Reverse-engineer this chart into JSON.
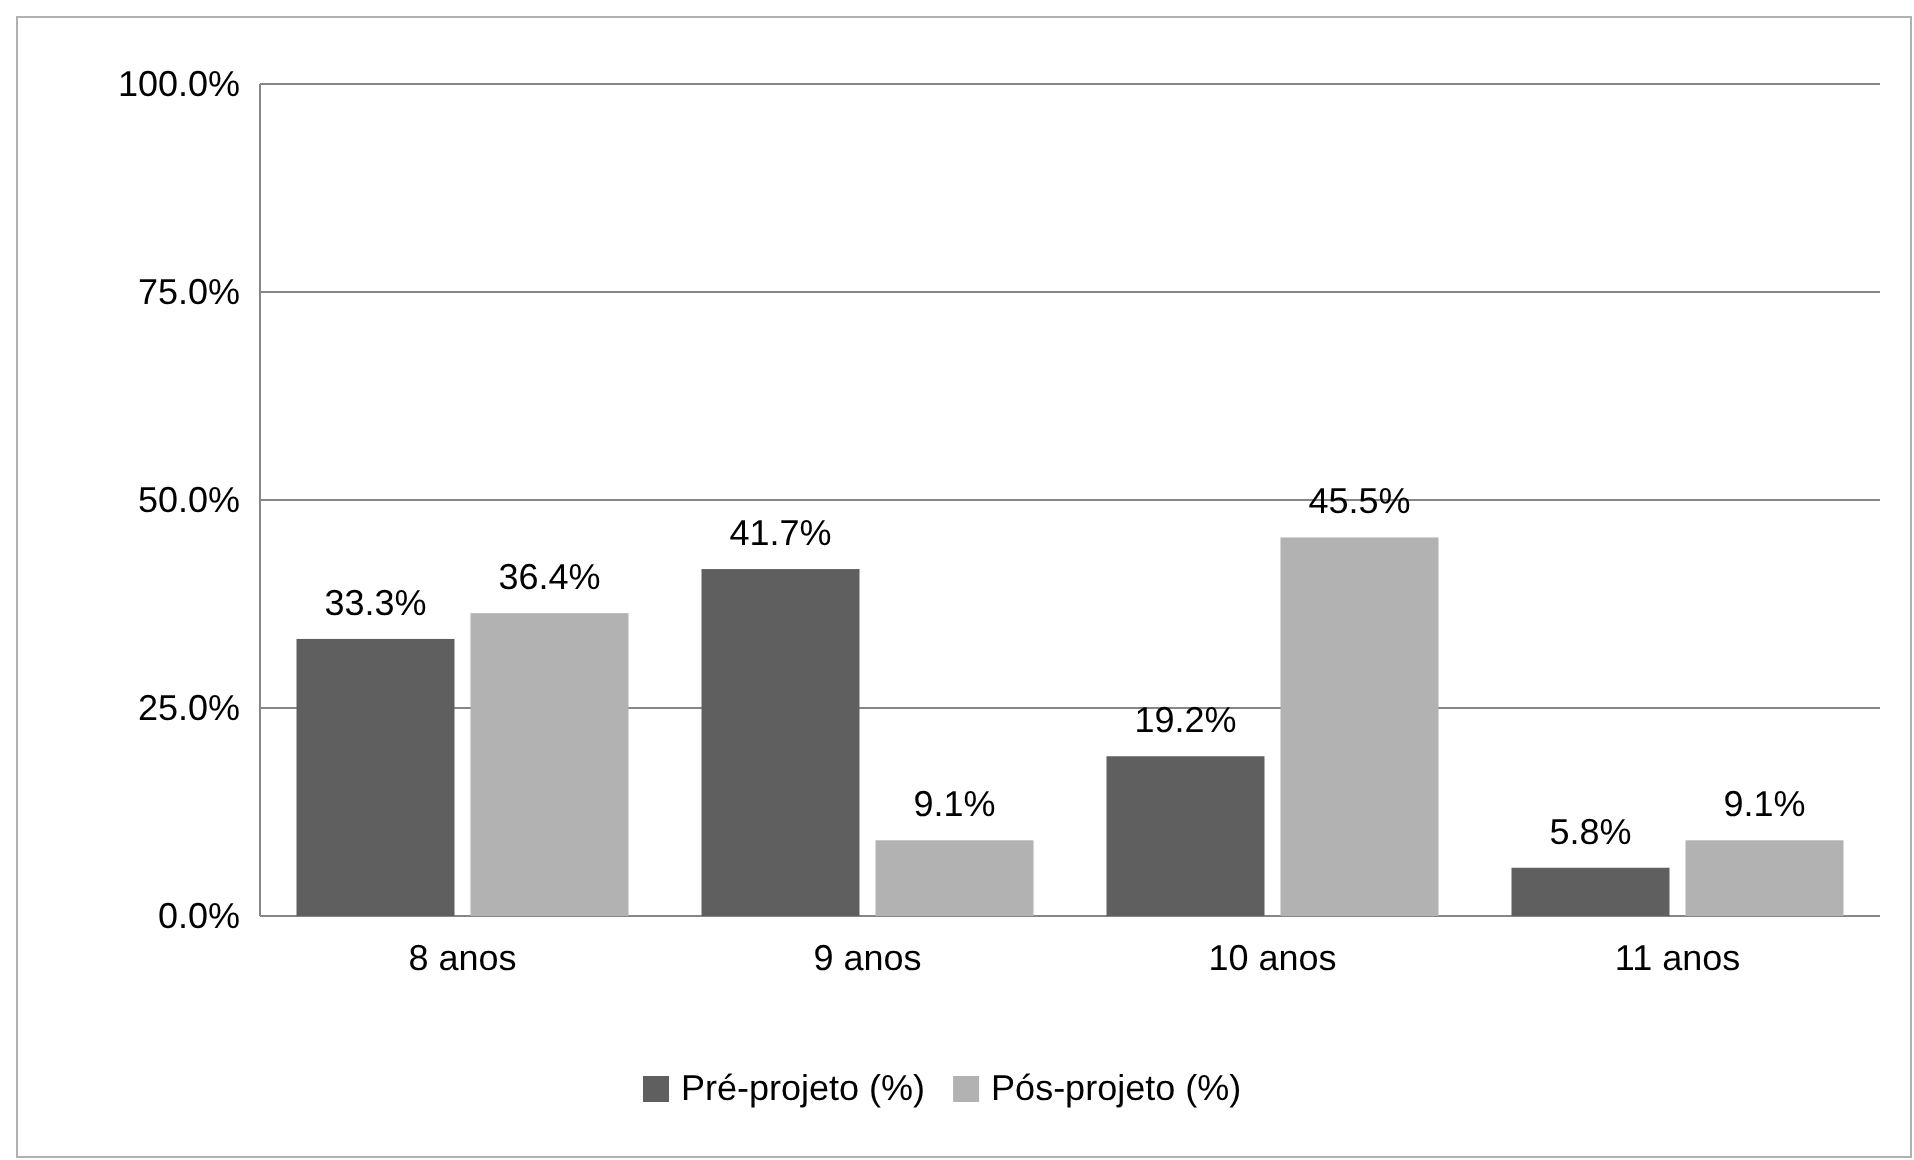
{
  "chart_data": {
    "type": "bar",
    "categories": [
      "8 anos",
      "9 anos",
      "10 anos",
      "11 anos"
    ],
    "series": [
      {
        "name": "Pré-projeto (%)",
        "color": "#5f5f5f",
        "values": [
          33.3,
          41.7,
          19.2,
          5.8
        ],
        "value_labels": [
          "33.3%",
          "41.7%",
          "19.2%",
          "5.8%"
        ]
      },
      {
        "name": "Pós-projeto (%)",
        "color": "#b2b2b2",
        "values": [
          36.4,
          9.1,
          45.5,
          9.1
        ],
        "value_labels": [
          "36.4%",
          "9.1%",
          "45.5%",
          "9.1%"
        ]
      }
    ],
    "ylim": [
      0,
      100
    ],
    "yticks": [
      {
        "value": 0,
        "label": "0.0%"
      },
      {
        "value": 25,
        "label": "25.0%"
      },
      {
        "value": 50,
        "label": "50.0%"
      },
      {
        "value": 75,
        "label": "75.0%"
      },
      {
        "value": 100,
        "label": "100.0%"
      }
    ],
    "grid": "y",
    "legend": "bottom"
  }
}
